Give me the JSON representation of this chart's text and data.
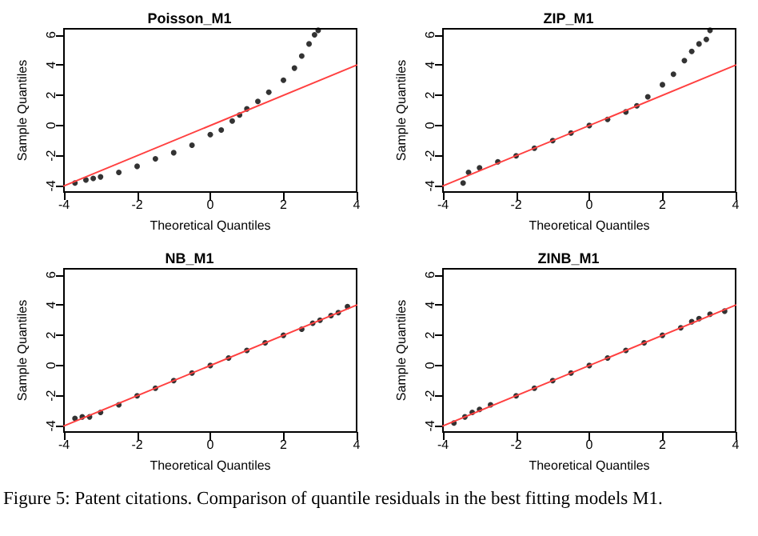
{
  "chart_data": [
    {
      "type": "scatter",
      "title": "Poisson_M1",
      "xlabel": "Theoretical Quantiles",
      "ylabel": "Sample Quantiles",
      "xlim": [
        -4,
        4
      ],
      "ylim": [
        -4.4,
        6.4
      ],
      "xticks": [
        -4,
        -2,
        0,
        2,
        4
      ],
      "yticks": [
        -4,
        -2,
        0,
        2,
        4,
        6
      ],
      "grid": false,
      "series": [
        {
          "color": "#000000",
          "marker": "circle",
          "x": [
            -3.7,
            -3.4,
            -3.2,
            -3.0,
            -2.5,
            -2.0,
            -1.5,
            -1.0,
            -0.5,
            0.0,
            0.3,
            0.6,
            0.8,
            1.0,
            1.3,
            1.6,
            2.0,
            2.3,
            2.5,
            2.7,
            2.85,
            2.95
          ],
          "values": [
            -3.8,
            -3.6,
            -3.5,
            -3.4,
            -3.1,
            -2.7,
            -2.2,
            -1.8,
            -1.3,
            -0.6,
            -0.3,
            0.3,
            0.7,
            1.1,
            1.6,
            2.2,
            3.0,
            3.8,
            4.6,
            5.4,
            6.0,
            6.3
          ]
        },
        {
          "type": "line",
          "color": "#ff4040",
          "line_style": "solid",
          "marker": "none",
          "x": [
            -4,
            4
          ],
          "values": [
            -4,
            4
          ]
        }
      ]
    },
    {
      "type": "scatter",
      "title": "ZIP_M1",
      "xlabel": "Theoretical Quantiles",
      "ylabel": "Sample Quantiles",
      "xlim": [
        -4,
        4
      ],
      "ylim": [
        -4.4,
        6.4
      ],
      "xticks": [
        -4,
        -2,
        0,
        2,
        4
      ],
      "yticks": [
        -4,
        -2,
        0,
        2,
        4,
        6
      ],
      "grid": false,
      "series": [
        {
          "color": "#000000",
          "marker": "circle",
          "x": [
            -3.45,
            -3.3,
            -3.0,
            -2.5,
            -2.0,
            -1.5,
            -1.0,
            -0.5,
            0.0,
            0.5,
            1.0,
            1.3,
            1.6,
            2.0,
            2.3,
            2.6,
            2.8,
            3.0,
            3.2,
            3.3
          ],
          "values": [
            -3.8,
            -3.1,
            -2.8,
            -2.4,
            -2.0,
            -1.5,
            -1.0,
            -0.5,
            0.0,
            0.4,
            0.9,
            1.3,
            1.9,
            2.7,
            3.4,
            4.3,
            4.9,
            5.4,
            5.7,
            6.3
          ]
        },
        {
          "type": "line",
          "color": "#ff4040",
          "line_style": "solid",
          "marker": "none",
          "x": [
            -4,
            4
          ],
          "values": [
            -4,
            4
          ]
        }
      ]
    },
    {
      "type": "scatter",
      "title": "NB_M1",
      "xlabel": "Theoretical Quantiles",
      "ylabel": "Sample Quantiles",
      "xlim": [
        -4,
        4
      ],
      "ylim": [
        -4.4,
        6.4
      ],
      "xticks": [
        -4,
        -2,
        0,
        2,
        4
      ],
      "yticks": [
        -4,
        -2,
        0,
        2,
        4,
        6
      ],
      "grid": false,
      "series": [
        {
          "color": "#000000",
          "marker": "circle",
          "x": [
            -3.7,
            -3.5,
            -3.3,
            -3.0,
            -2.5,
            -2.0,
            -1.5,
            -1.0,
            -0.5,
            0.0,
            0.5,
            1.0,
            1.5,
            2.0,
            2.5,
            2.8,
            3.0,
            3.3,
            3.5,
            3.75
          ],
          "values": [
            -3.5,
            -3.4,
            -3.4,
            -3.1,
            -2.6,
            -2.0,
            -1.5,
            -1.0,
            -0.5,
            0.0,
            0.5,
            1.0,
            1.5,
            2.0,
            2.4,
            2.8,
            3.0,
            3.3,
            3.5,
            3.9
          ]
        },
        {
          "type": "line",
          "color": "#ff4040",
          "line_style": "solid",
          "marker": "none",
          "x": [
            -4,
            4
          ],
          "values": [
            -4,
            4
          ]
        }
      ]
    },
    {
      "type": "scatter",
      "title": "ZINB_M1",
      "xlabel": "Theoretical Quantiles",
      "ylabel": "Sample Quantiles",
      "xlim": [
        -4,
        4
      ],
      "ylim": [
        -4.4,
        6.4
      ],
      "xticks": [
        -4,
        -2,
        0,
        2,
        4
      ],
      "yticks": [
        -4,
        -2,
        0,
        2,
        4,
        6
      ],
      "grid": false,
      "annotations": [
        "Figure 5: Patent citations. Comparison of quantile residuals in the best fitting models M1."
      ],
      "series": [
        {
          "color": "#000000",
          "marker": "circle",
          "x": [
            -3.7,
            -3.4,
            -3.2,
            -3.0,
            -2.7,
            -2.0,
            -1.5,
            -1.0,
            -0.5,
            0.0,
            0.5,
            1.0,
            1.5,
            2.0,
            2.5,
            2.8,
            3.0,
            3.3,
            3.7
          ],
          "values": [
            -3.8,
            -3.4,
            -3.1,
            -2.9,
            -2.6,
            -2.0,
            -1.5,
            -1.0,
            -0.5,
            0.0,
            0.5,
            1.0,
            1.5,
            2.0,
            2.5,
            2.9,
            3.1,
            3.4,
            3.6
          ]
        },
        {
          "type": "line",
          "color": "#ff4040",
          "line_style": "solid",
          "marker": "none",
          "x": [
            -4,
            4
          ],
          "values": [
            -4,
            4
          ]
        }
      ]
    }
  ]
}
